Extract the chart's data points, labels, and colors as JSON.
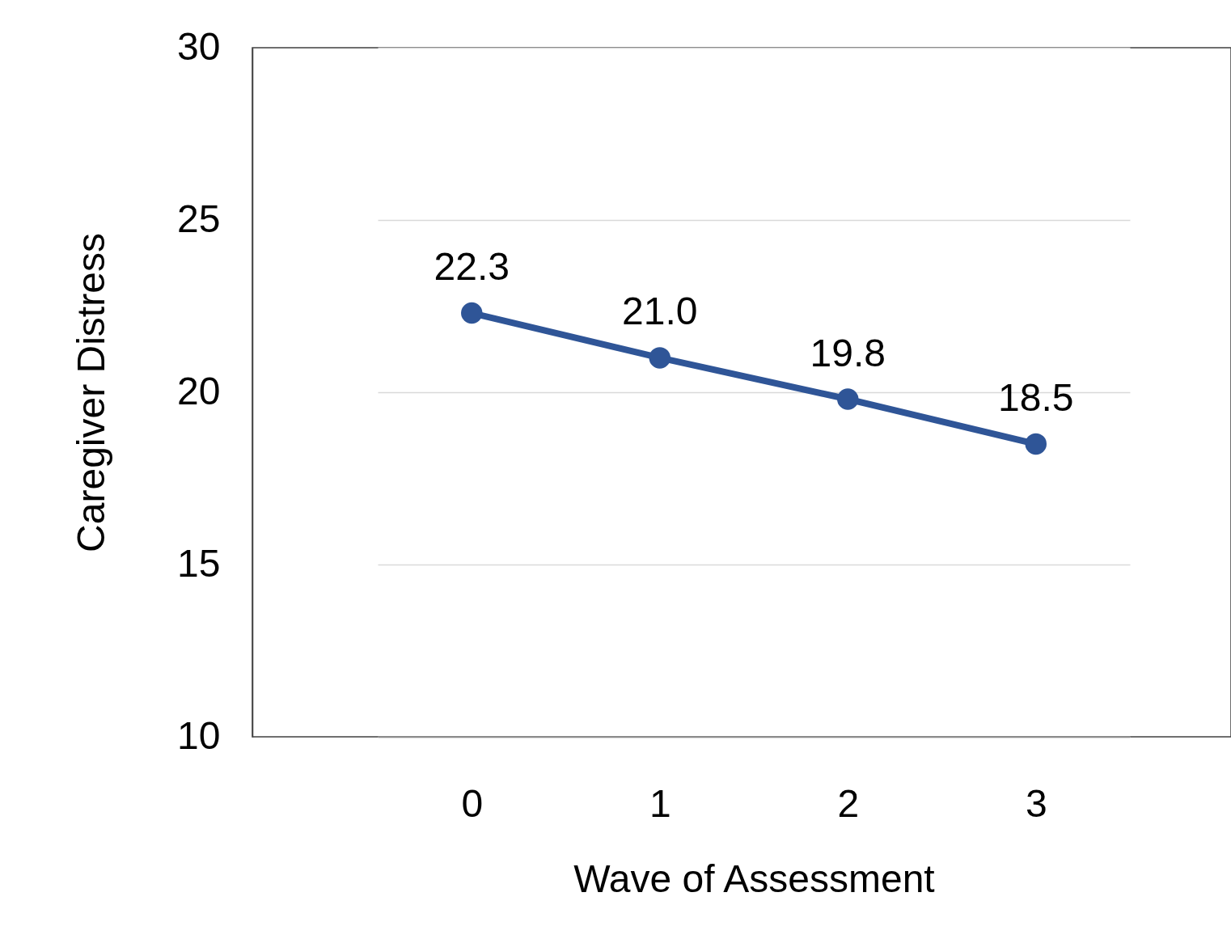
{
  "chart_data": {
    "type": "line",
    "xlabel": "Wave of Assessment",
    "ylabel": "Caregiver Distress",
    "categories": [
      "0",
      "1",
      "2",
      "3"
    ],
    "series": [
      {
        "color": "#2f5597",
        "values": [
          22.3,
          21.0,
          19.8,
          18.5
        ]
      }
    ],
    "value_labels": [
      "22.3",
      "21.0",
      "19.8",
      "18.5"
    ],
    "ylim": [
      10,
      30
    ],
    "yticks": [
      10,
      15,
      20,
      25,
      30
    ],
    "grid": "y",
    "marker": "circle",
    "line_style": "solid"
  }
}
